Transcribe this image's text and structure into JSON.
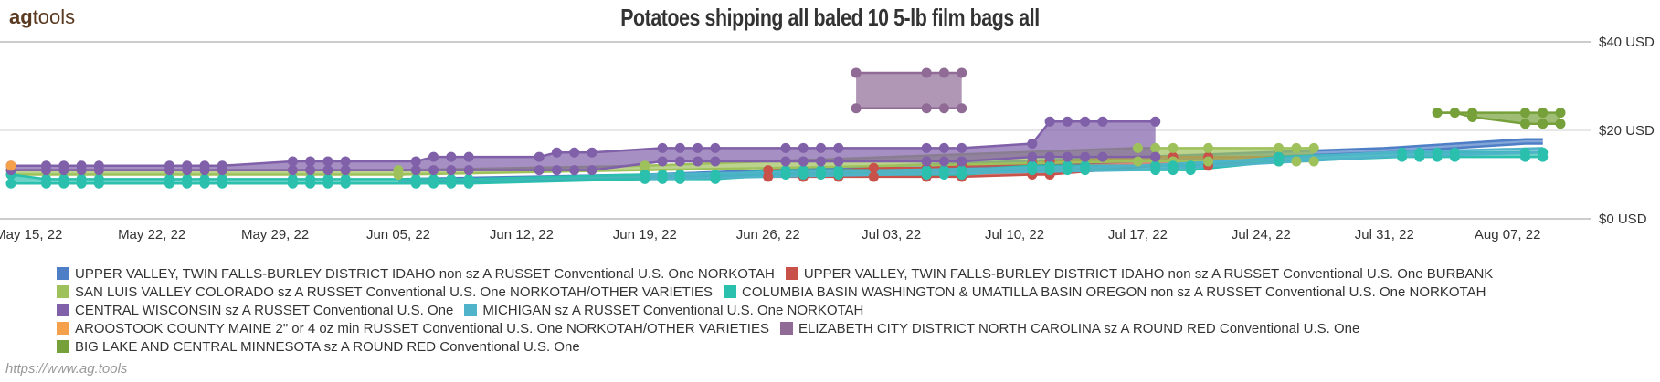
{
  "header": {
    "logo_bold": "ag",
    "logo_rest": "tools"
  },
  "footer": {
    "source_url": "https://www.ag.tools"
  },
  "chart_data": {
    "type": "area",
    "title": "Potatoes shipping all baled 10 5-lb film bags all",
    "xlabel": "",
    "ylabel": "",
    "x_type": "date",
    "xlim": [
      "2022-05-14",
      "2022-08-10"
    ],
    "ylim": [
      0,
      40
    ],
    "y_ticks": [
      0,
      20,
      40
    ],
    "y_tick_labels": [
      "$0 USD",
      "$20 USD",
      "$40 USD"
    ],
    "x_tick_labels": [
      "May 15, 22",
      "May 22, 22",
      "May 29, 22",
      "Jun 05, 22",
      "Jun 12, 22",
      "Jun 19, 22",
      "Jun 26, 22",
      "Jul 03, 22",
      "Jul 10, 22",
      "Jul 17, 22",
      "Jul 24, 22",
      "Jul 31, 22",
      "Aug 07, 22"
    ],
    "x_ticks": [
      "2022-05-15",
      "2022-05-22",
      "2022-05-29",
      "2022-06-05",
      "2022-06-12",
      "2022-06-19",
      "2022-06-26",
      "2022-07-03",
      "2022-07-10",
      "2022-07-17",
      "2022-07-24",
      "2022-07-31",
      "2022-08-07"
    ],
    "grid": "horizontal",
    "legend_position": "bottom",
    "series": [
      {
        "name": "UPPER VALLEY, TWIN FALLS-BURLEY DISTRICT IDAHO non sz A  RUSSET Conventional U.S. One NORKOTAH",
        "color": "#4e7fc6",
        "x": [
          "2022-06-05",
          "2022-06-19",
          "2022-07-03",
          "2022-07-17",
          "2022-07-31",
          "2022-08-08",
          "2022-08-09"
        ],
        "low": [
          8,
          9,
          11,
          13,
          15,
          17,
          17
        ],
        "high": [
          9,
          10,
          12,
          14,
          16,
          18,
          18
        ],
        "markers": false
      },
      {
        "name": "UPPER VALLEY, TWIN FALLS-BURLEY DISTRICT IDAHO non sz A  RUSSET Conventional U.S. One BURBANK",
        "color": "#c8524a",
        "x": [
          "2022-06-26",
          "2022-06-28",
          "2022-06-30",
          "2022-07-02",
          "2022-07-05",
          "2022-07-07",
          "2022-07-11",
          "2022-07-12",
          "2022-07-18",
          "2022-07-19",
          "2022-07-21",
          "2022-07-25"
        ],
        "low": [
          9.5,
          9.5,
          9.5,
          9.5,
          9.5,
          9.5,
          10,
          10,
          12,
          12,
          12,
          13
        ],
        "high": [
          11,
          11,
          11,
          11.5,
          11.5,
          12,
          12.5,
          13,
          14,
          14,
          14,
          14
        ],
        "markers": true
      },
      {
        "name": "SAN LUIS VALLEY COLORADO sz A  RUSSET Conventional U.S. One NORKOTAH/OTHER VARIETIES",
        "color": "#9ec15b",
        "x": [
          "2022-05-14",
          "2022-06-05",
          "2022-06-19",
          "2022-07-17",
          "2022-07-18",
          "2022-07-19",
          "2022-07-21",
          "2022-07-25",
          "2022-07-26",
          "2022-07-27"
        ],
        "low": [
          10,
          10,
          11,
          13,
          13,
          13,
          13,
          13,
          13,
          13
        ],
        "high": [
          11,
          11,
          12,
          16,
          16,
          16,
          16,
          16,
          16,
          16
        ],
        "markers": true
      },
      {
        "name": "COLUMBIA BASIN WASHINGTON & UMATILLA BASIN OREGON non sz A  RUSSET Conventional U.S. One NORKOTAH",
        "color": "#2bbfae",
        "x": [
          "2022-05-14",
          "2022-05-16",
          "2022-05-17",
          "2022-05-18",
          "2022-05-19",
          "2022-05-23",
          "2022-05-24",
          "2022-05-25",
          "2022-05-26",
          "2022-05-30",
          "2022-05-31",
          "2022-06-01",
          "2022-06-02",
          "2022-06-06",
          "2022-06-07",
          "2022-06-08",
          "2022-06-09",
          "2022-06-19",
          "2022-06-20",
          "2022-06-21",
          "2022-06-23",
          "2022-06-27",
          "2022-06-28",
          "2022-06-29",
          "2022-06-30",
          "2022-07-05",
          "2022-07-06",
          "2022-07-07",
          "2022-07-11",
          "2022-07-12",
          "2022-07-13",
          "2022-07-14",
          "2022-07-18",
          "2022-07-19",
          "2022-07-20",
          "2022-07-25",
          "2022-08-01",
          "2022-08-02",
          "2022-08-03",
          "2022-08-04",
          "2022-08-08",
          "2022-08-09"
        ],
        "low": [
          8,
          8,
          8,
          8,
          8,
          8,
          8,
          8,
          8,
          8,
          8,
          8,
          8,
          8,
          8,
          8,
          8,
          9,
          9,
          9,
          9,
          10,
          10,
          10,
          10,
          10,
          10,
          10,
          11,
          11,
          11,
          11,
          11,
          11,
          11,
          13,
          14,
          14,
          14,
          14,
          14,
          14
        ],
        "high": [
          10,
          9,
          9,
          9,
          9,
          9,
          9,
          9,
          9,
          9,
          9,
          9,
          9,
          9,
          9,
          9,
          9,
          10,
          10,
          10,
          10,
          11,
          11,
          11,
          11,
          11,
          11,
          11,
          12,
          12,
          12,
          12,
          12,
          12,
          12,
          14,
          15,
          15,
          15,
          15,
          15,
          15
        ],
        "markers": true
      },
      {
        "name": "CENTRAL WISCONSIN sz A  RUSSET Conventional U.S. One",
        "color": "#8060a8",
        "x": [
          "2022-05-14",
          "2022-05-16",
          "2022-05-17",
          "2022-05-18",
          "2022-05-19",
          "2022-05-23",
          "2022-05-24",
          "2022-05-25",
          "2022-05-26",
          "2022-05-30",
          "2022-05-31",
          "2022-06-01",
          "2022-06-02",
          "2022-06-06",
          "2022-06-07",
          "2022-06-08",
          "2022-06-09",
          "2022-06-13",
          "2022-06-14",
          "2022-06-15",
          "2022-06-16",
          "2022-06-20",
          "2022-06-21",
          "2022-06-22",
          "2022-06-23",
          "2022-06-27",
          "2022-06-28",
          "2022-06-29",
          "2022-06-30",
          "2022-07-05",
          "2022-07-06",
          "2022-07-07",
          "2022-07-11",
          "2022-07-12",
          "2022-07-13",
          "2022-07-14",
          "2022-07-15",
          "2022-07-18"
        ],
        "low": [
          11,
          11,
          11,
          11,
          11,
          11,
          11,
          11,
          11,
          11,
          11,
          11,
          11,
          11,
          11,
          11,
          11,
          11,
          11,
          11,
          11,
          13,
          13,
          13,
          13,
          13,
          13,
          13,
          13,
          13,
          13,
          13,
          14,
          14,
          14,
          14,
          14,
          14
        ],
        "high": [
          12,
          12,
          12,
          12,
          12,
          12,
          12,
          12,
          12,
          13,
          13,
          13,
          13,
          13,
          14,
          14,
          14,
          14,
          15,
          15,
          15,
          16,
          16,
          16,
          16,
          16,
          16,
          16,
          16,
          16,
          16,
          16,
          17,
          22,
          22,
          22,
          22,
          22
        ],
        "markers": true
      },
      {
        "name": "MICHIGAN sz A  RUSSET Conventional U.S. One NORKOTAH",
        "color": "#4fb3c9",
        "x": [
          "2022-06-19",
          "2022-07-17",
          "2022-07-31",
          "2022-08-09"
        ],
        "low": [
          9,
          11,
          14,
          15
        ],
        "high": [
          10,
          12,
          15,
          16
        ],
        "markers": false
      },
      {
        "name": "AROOSTOOK COUNTY MAINE 2\" or 4 oz min  RUSSET Conventional U.S. One NORKOTAH/OTHER VARIETIES",
        "color": "#f5a04a",
        "x": [
          "2022-05-14"
        ],
        "low": [
          12
        ],
        "high": [
          12
        ],
        "markers": true
      },
      {
        "name": "ELIZABETH CITY DISTRICT NORTH CAROLINA sz A  ROUND RED Conventional U.S. One",
        "color": "#8f6b96",
        "x": [
          "2022-07-01",
          "2022-07-05",
          "2022-07-06",
          "2022-07-07"
        ],
        "low": [
          25,
          25,
          25,
          25
        ],
        "high": [
          33,
          33,
          33,
          33
        ],
        "markers": true
      },
      {
        "name": "BIG LAKE AND CENTRAL MINNESOTA sz A  ROUND RED Conventional U.S. One",
        "color": "#76a13a",
        "x": [
          "2022-08-03",
          "2022-08-04",
          "2022-08-05",
          "2022-08-08",
          "2022-08-09",
          "2022-08-10"
        ],
        "low": [
          24,
          24,
          23,
          21.5,
          21.5,
          21.5
        ],
        "high": [
          24,
          24,
          24,
          24,
          24,
          24
        ],
        "markers": true
      }
    ]
  }
}
